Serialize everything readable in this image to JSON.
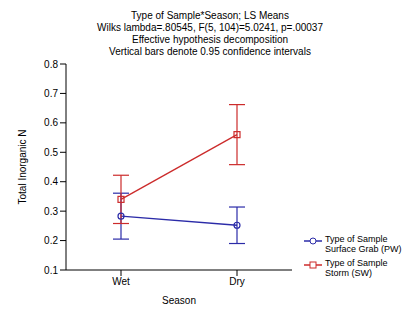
{
  "chart_data": {
    "type": "line",
    "title": "Type of Sample*Season; LS Means",
    "subtitle": [
      "Wilks lambda=.80545, F(5, 104)=5.0241, p=.00037",
      "Effective hypothesis decomposition",
      "Vertical bars denote 0.95 confidence intervals"
    ],
    "x_label": "Season",
    "y_label": "Total Inorganic N",
    "categories": [
      "Wet",
      "Dry"
    ],
    "series": [
      {
        "name": "Type of Sample Surface Grab (PW)",
        "color": "#2b2ba8",
        "marker": "circle",
        "values": [
          0.283,
          0.252
        ],
        "errors": [
          0.078,
          0.062
        ]
      },
      {
        "name": "Type of Sample Storm (SW)",
        "color": "#cc2b2b",
        "marker": "square",
        "values": [
          0.34,
          0.56
        ],
        "errors": [
          0.082,
          0.102
        ]
      }
    ],
    "ylim": [
      0.1,
      0.8
    ],
    "yticks": [
      0.1,
      0.2,
      0.3,
      0.4,
      0.5,
      0.6,
      0.7,
      0.8
    ],
    "grid": false,
    "legend": "lower right"
  }
}
